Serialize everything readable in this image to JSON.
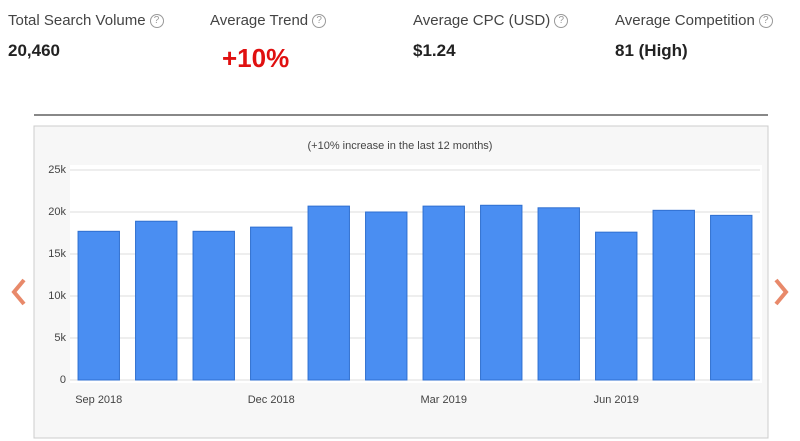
{
  "metrics": [
    {
      "label": "Total Search Volume",
      "value": "20,460"
    },
    {
      "label": "Average Trend",
      "value": "+10%"
    },
    {
      "label": "Average CPC (USD)",
      "value": "$1.24"
    },
    {
      "label": "Average Competition",
      "value": "81 (High)"
    }
  ],
  "chart_data": {
    "type": "bar",
    "subtitle": "(+10% increase in the last 12 months)",
    "categories": [
      "Sep 2018",
      null,
      null,
      "Dec 2018",
      null,
      null,
      "Mar 2019",
      null,
      null,
      "Jun 2019",
      null,
      null
    ],
    "values": [
      17700,
      18900,
      17700,
      18200,
      20700,
      20000,
      20700,
      20800,
      20500,
      17600,
      20200,
      19600
    ],
    "color": "#4a8ef2",
    "ylim": [
      0,
      25000
    ],
    "yticks": [
      0,
      {
        "value": 5000,
        "label": "5k"
      },
      {
        "value": 10000,
        "label": "10k"
      },
      {
        "value": 15000,
        "label": "15k"
      },
      {
        "value": 20000,
        "label": "20k"
      },
      {
        "value": 25000,
        "label": "25k"
      }
    ],
    "grid": true
  }
}
